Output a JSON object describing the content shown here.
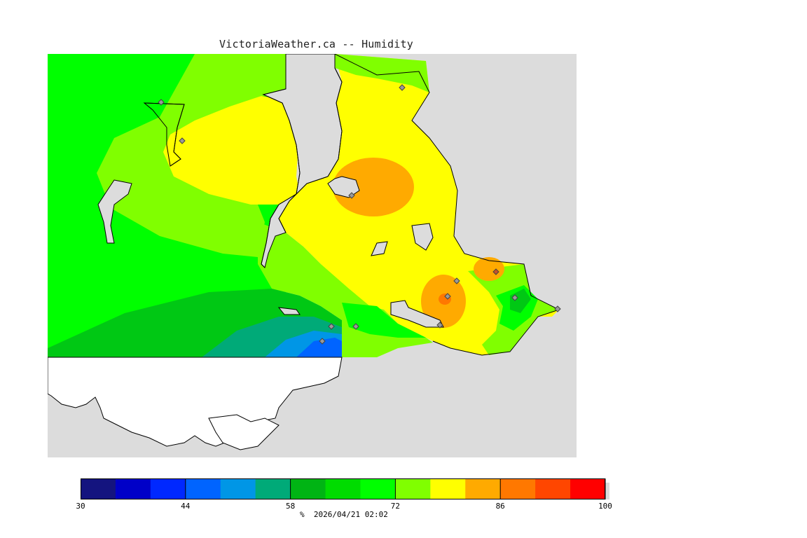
{
  "header": {
    "title": "VictoriaWeather.ca -- Humidity"
  },
  "map": {
    "land_color": "#dcdcdc",
    "unshaded_land_color": "#ffffff",
    "coast_color": "#000000",
    "station_marker_icon": "diamond-icon",
    "station_count": 13
  },
  "colorbar": {
    "min": 30,
    "max": 100,
    "step": 5,
    "colors": [
      "#14147f",
      "#0000c8",
      "#0028ff",
      "#0064ff",
      "#0096e6",
      "#00aa78",
      "#00b414",
      "#00dc00",
      "#00ff00",
      "#80ff00",
      "#ffff00",
      "#ffaa00",
      "#ff7800",
      "#ff4600",
      "#ff0000"
    ],
    "tick_labels": [
      "30",
      "44",
      "58",
      "72",
      "86",
      "100"
    ]
  },
  "footer": {
    "unit": "%",
    "timestamp": "2026/04/21 02:02"
  }
}
